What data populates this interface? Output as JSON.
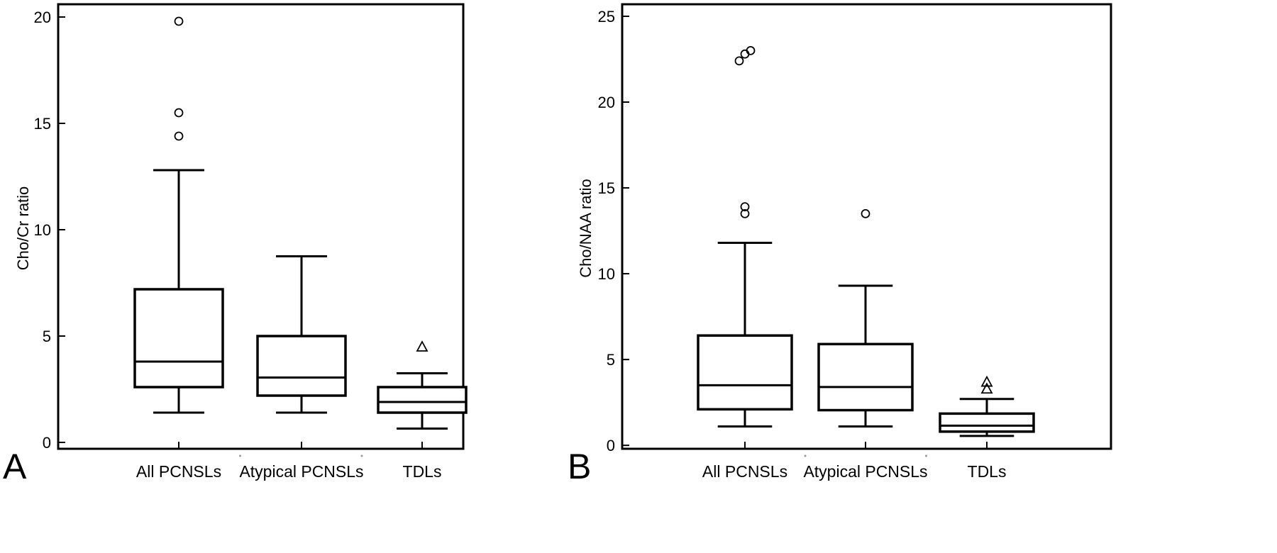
{
  "chart_data": [
    {
      "panel": "A",
      "type": "box",
      "ylabel": "Cho/Cr ratio",
      "ylim": [
        -0.3,
        20.6
      ],
      "yticks": [
        0,
        5,
        10,
        15,
        20
      ],
      "categories": [
        "All PCNSLs",
        "Atypical PCNSLs",
        "TDLs"
      ],
      "boxes": [
        {
          "category": "All PCNSLs",
          "whisker_low": 1.4,
          "q1": 2.6,
          "median": 3.8,
          "q3": 7.2,
          "whisker_high": 12.8,
          "outliers": [
            14.4,
            15.5,
            19.8
          ],
          "outlier_marker": "circle"
        },
        {
          "category": "Atypical PCNSLs",
          "whisker_low": 1.4,
          "q1": 2.2,
          "median": 3.05,
          "q3": 5.0,
          "whisker_high": 8.75,
          "outliers": [],
          "outlier_marker": "circle"
        },
        {
          "category": "TDLs",
          "whisker_low": 0.65,
          "q1": 1.4,
          "median": 1.9,
          "q3": 2.6,
          "whisker_high": 3.25,
          "outliers": [
            4.5
          ],
          "outlier_marker": "triangle"
        }
      ]
    },
    {
      "panel": "B",
      "type": "box",
      "ylabel": "Cho/NAA ratio",
      "ylim": [
        -0.2,
        25.7
      ],
      "yticks": [
        0,
        5,
        10,
        15,
        20,
        25
      ],
      "categories": [
        "All PCNSLs",
        "Atypical PCNSLs",
        "TDLs"
      ],
      "boxes": [
        {
          "category": "All PCNSLs",
          "whisker_low": 1.1,
          "q1": 2.1,
          "median": 3.5,
          "q3": 6.4,
          "whisker_high": 11.8,
          "outliers": [
            13.5,
            13.9,
            22.4,
            22.8,
            23.0
          ],
          "outlier_marker": "circle"
        },
        {
          "category": "Atypical PCNSLs",
          "whisker_low": 1.1,
          "q1": 2.05,
          "median": 3.4,
          "q3": 5.9,
          "whisker_high": 9.3,
          "outliers": [
            13.5
          ],
          "outlier_marker": "circle"
        },
        {
          "category": "TDLs",
          "whisker_low": 0.55,
          "q1": 0.8,
          "median": 1.15,
          "q3": 1.85,
          "whisker_high": 2.7,
          "outliers": [
            3.3,
            3.7
          ],
          "outlier_marker": "triangle"
        }
      ]
    }
  ]
}
